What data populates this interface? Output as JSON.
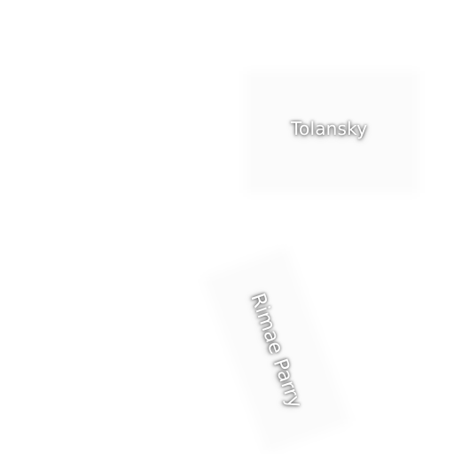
{
  "map": {
    "labels": {
      "crater": "Tolansky",
      "rille": "Rimae Parry"
    },
    "colors": {
      "background": "#ffffff",
      "label_text": "#ffffff",
      "label_shadow": "#000000"
    }
  }
}
